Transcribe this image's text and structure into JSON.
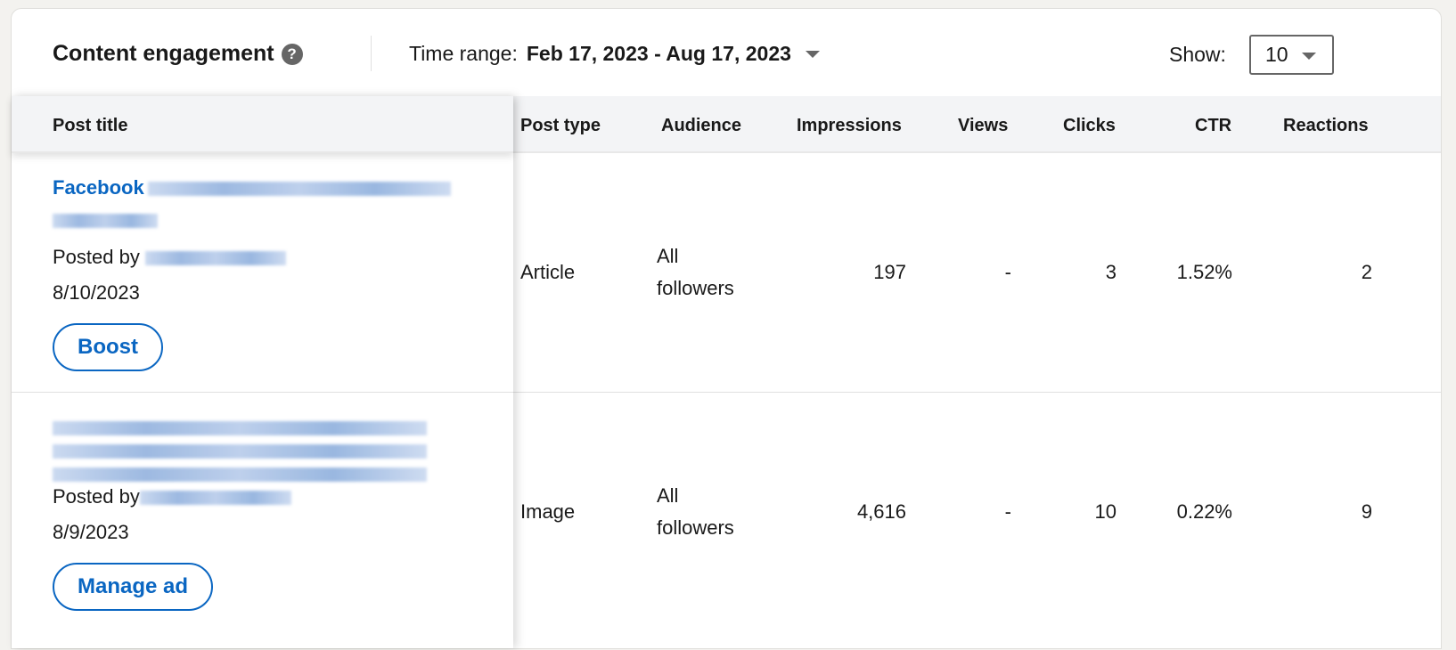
{
  "header": {
    "title": "Content engagement",
    "help_icon": "question-circle-icon",
    "time_range_label": "Time range:",
    "time_range_value": "Feb 17, 2023 - Aug 17, 2023",
    "show_label": "Show:",
    "show_value": "10"
  },
  "columns": [
    "Post title",
    "Post type",
    "Audience",
    "Impressions",
    "Views",
    "Clicks",
    "CTR",
    "Reactions"
  ],
  "rows": [
    {
      "title_prefix": "Facebook",
      "posted_by": "Posted by",
      "date": "8/10/2023",
      "action": "Boost",
      "post_type": "Article",
      "audience_1": "All",
      "audience_2": "followers",
      "impressions": "197",
      "views": "-",
      "clicks": "3",
      "ctr": "1.52%",
      "reactions": "2"
    },
    {
      "title_prefix": "",
      "posted_by": "Posted by",
      "date": "8/9/2023",
      "action": "Manage ad",
      "post_type": "Image",
      "audience_1": "All",
      "audience_2": "followers",
      "impressions": "4,616",
      "views": "-",
      "clicks": "10",
      "ctr": "0.22%",
      "reactions": "9"
    }
  ],
  "colors": {
    "accent": "#0a66c2",
    "background": "#f3f2ef"
  }
}
